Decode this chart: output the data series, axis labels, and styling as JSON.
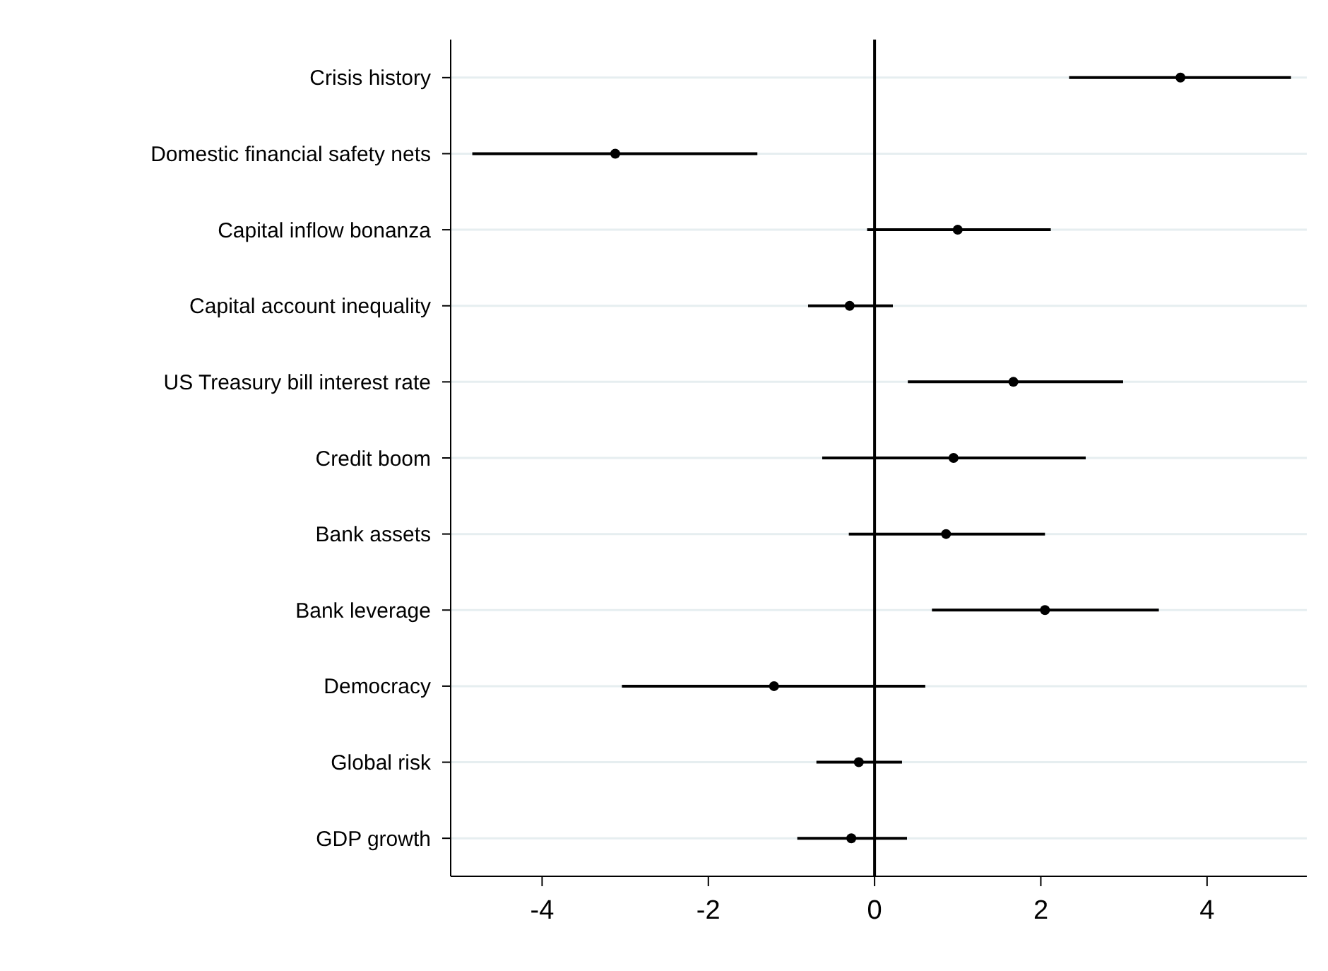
{
  "chart_data": {
    "type": "scatter",
    "orientation": "horizontal",
    "categories": [
      "Crisis history",
      "Domestic financial safety nets",
      "Capital inflow bonanza",
      "Capital account inequality",
      "US Treasury bill interest rate",
      "Credit boom",
      "Bank assets",
      "Bank leverage",
      "Democracy",
      "Global risk",
      "GDP growth"
    ],
    "color": "#000000",
    "values": [
      3.68,
      -3.12,
      1.0,
      -0.3,
      1.67,
      0.95,
      0.86,
      2.05,
      -1.21,
      -0.19,
      -0.28
    ],
    "errors": [
      [
        2.34,
        5.01
      ],
      [
        -4.84,
        -1.41
      ],
      [
        -0.09,
        2.12
      ],
      [
        -0.8,
        0.22
      ],
      [
        0.4,
        2.99
      ],
      [
        -0.63,
        2.54
      ],
      [
        -0.31,
        2.05
      ],
      [
        0.69,
        3.42
      ],
      [
        -3.04,
        0.61
      ],
      [
        -0.7,
        0.33
      ],
      [
        -0.93,
        0.39
      ]
    ],
    "xlim": [
      -5.1,
      5.2
    ],
    "xticks": [
      -4,
      -2,
      0,
      2,
      4
    ],
    "grid": "y",
    "marker": "circle",
    "ref_lines": [
      {
        "axis": "x",
        "value": 0,
        "color": "#000000"
      }
    ]
  }
}
